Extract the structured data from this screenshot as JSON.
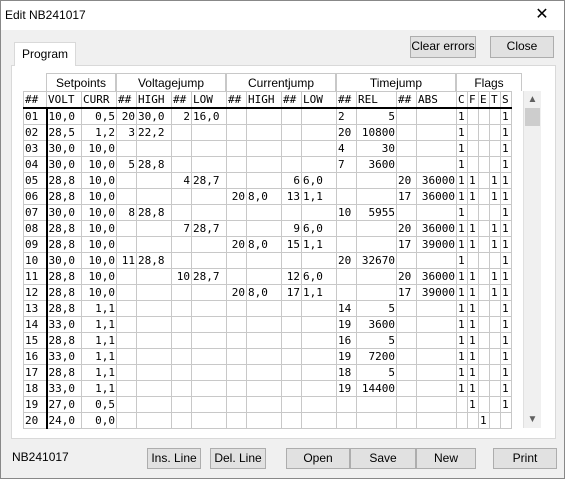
{
  "window": {
    "title": "Edit  NB241017",
    "close_glyph": "✕"
  },
  "tab": "Program",
  "buttons": {
    "clear_errors": "Clear errors",
    "close": "Close",
    "ins_line": "Ins. Line",
    "del_line": "Del. Line",
    "open": "Open",
    "save": "Save",
    "new": "New",
    "print": "Print"
  },
  "status_label": "NB241017",
  "groups": {
    "setpoints": "Setpoints",
    "voltagejump": "Voltagejump",
    "currentjump": "Currentjump",
    "timejump": "Timejump",
    "flags": "Flags"
  },
  "columns": [
    "##",
    "VOLT",
    "CURR",
    "##",
    "HIGH",
    "##",
    "LOW",
    "##",
    "HIGH",
    "##",
    "LOW",
    "##",
    "REL",
    "##",
    "ABS",
    "C",
    "F",
    "E",
    "T",
    "S"
  ],
  "rows": [
    [
      "01",
      "10,0",
      "0,5",
      "20",
      "30,0",
      "2",
      "16,0",
      "",
      "",
      "",
      "",
      "2",
      "5",
      "",
      "",
      "1",
      "",
      "",
      "",
      "1"
    ],
    [
      "02",
      "28,5",
      "1,2",
      "3",
      "22,2",
      "",
      "",
      "",
      "",
      "",
      "",
      "20",
      "10800",
      "",
      "",
      "1",
      "",
      "",
      "",
      "1"
    ],
    [
      "03",
      "30,0",
      "10,0",
      "",
      "",
      "",
      "",
      "",
      "",
      "",
      "",
      "4",
      "30",
      "",
      "",
      "1",
      "",
      "",
      "",
      "1"
    ],
    [
      "04",
      "30,0",
      "10,0",
      "5",
      "28,8",
      "",
      "",
      "",
      "",
      "",
      "",
      "7",
      "3600",
      "",
      "",
      "1",
      "",
      "",
      "",
      "1"
    ],
    [
      "05",
      "28,8",
      "10,0",
      "",
      "",
      "4",
      "28,7",
      "",
      "",
      "6",
      "6,0",
      "",
      "",
      "20",
      "36000",
      "1",
      "1",
      "",
      "1",
      "1"
    ],
    [
      "06",
      "28,8",
      "10,0",
      "",
      "",
      "",
      "",
      "20",
      "8,0",
      "13",
      "1,1",
      "",
      "",
      "17",
      "36000",
      "1",
      "1",
      "",
      "1",
      "1"
    ],
    [
      "07",
      "30,0",
      "10,0",
      "8",
      "28,8",
      "",
      "",
      "",
      "",
      "",
      "",
      "10",
      "5955",
      "",
      "",
      "1",
      "",
      "",
      "",
      "1"
    ],
    [
      "08",
      "28,8",
      "10,0",
      "",
      "",
      "7",
      "28,7",
      "",
      "",
      "9",
      "6,0",
      "",
      "",
      "20",
      "36000",
      "1",
      "1",
      "",
      "1",
      "1"
    ],
    [
      "09",
      "28,8",
      "10,0",
      "",
      "",
      "",
      "",
      "20",
      "8,0",
      "15",
      "1,1",
      "",
      "",
      "17",
      "39000",
      "1",
      "1",
      "",
      "1",
      "1"
    ],
    [
      "10",
      "30,0",
      "10,0",
      "11",
      "28,8",
      "",
      "",
      "",
      "",
      "",
      "",
      "20",
      "32670",
      "",
      "",
      "1",
      "",
      "",
      "",
      "1"
    ],
    [
      "11",
      "28,8",
      "10,0",
      "",
      "",
      "10",
      "28,7",
      "",
      "",
      "12",
      "6,0",
      "",
      "",
      "20",
      "36000",
      "1",
      "1",
      "",
      "1",
      "1"
    ],
    [
      "12",
      "28,8",
      "10,0",
      "",
      "",
      "",
      "",
      "20",
      "8,0",
      "17",
      "1,1",
      "",
      "",
      "17",
      "39000",
      "1",
      "1",
      "",
      "1",
      "1"
    ],
    [
      "13",
      "28,8",
      "1,1",
      "",
      "",
      "",
      "",
      "",
      "",
      "",
      "",
      "14",
      "5",
      "",
      "",
      "1",
      "1",
      "",
      "",
      "1"
    ],
    [
      "14",
      "33,0",
      "1,1",
      "",
      "",
      "",
      "",
      "",
      "",
      "",
      "",
      "19",
      "3600",
      "",
      "",
      "1",
      "1",
      "",
      "",
      "1"
    ],
    [
      "15",
      "28,8",
      "1,1",
      "",
      "",
      "",
      "",
      "",
      "",
      "",
      "",
      "16",
      "5",
      "",
      "",
      "1",
      "1",
      "",
      "",
      "1"
    ],
    [
      "16",
      "33,0",
      "1,1",
      "",
      "",
      "",
      "",
      "",
      "",
      "",
      "",
      "19",
      "7200",
      "",
      "",
      "1",
      "1",
      "",
      "",
      "1"
    ],
    [
      "17",
      "28,8",
      "1,1",
      "",
      "",
      "",
      "",
      "",
      "",
      "",
      "",
      "18",
      "5",
      "",
      "",
      "1",
      "1",
      "",
      "",
      "1"
    ],
    [
      "18",
      "33,0",
      "1,1",
      "",
      "",
      "",
      "",
      "",
      "",
      "",
      "",
      "19",
      "14400",
      "",
      "",
      "1",
      "1",
      "",
      "",
      "1"
    ],
    [
      "19",
      "27,0",
      "0,5",
      "",
      "",
      "",
      "",
      "",
      "",
      "",
      "",
      "",
      "",
      "",
      "",
      "",
      "1",
      "",
      "",
      "1"
    ],
    [
      "20",
      "24,0",
      "0,0",
      "",
      "",
      "",
      "",
      "",
      "",
      "",
      "",
      "",
      "",
      "",
      "",
      "",
      "",
      "1",
      "",
      ""
    ]
  ]
}
